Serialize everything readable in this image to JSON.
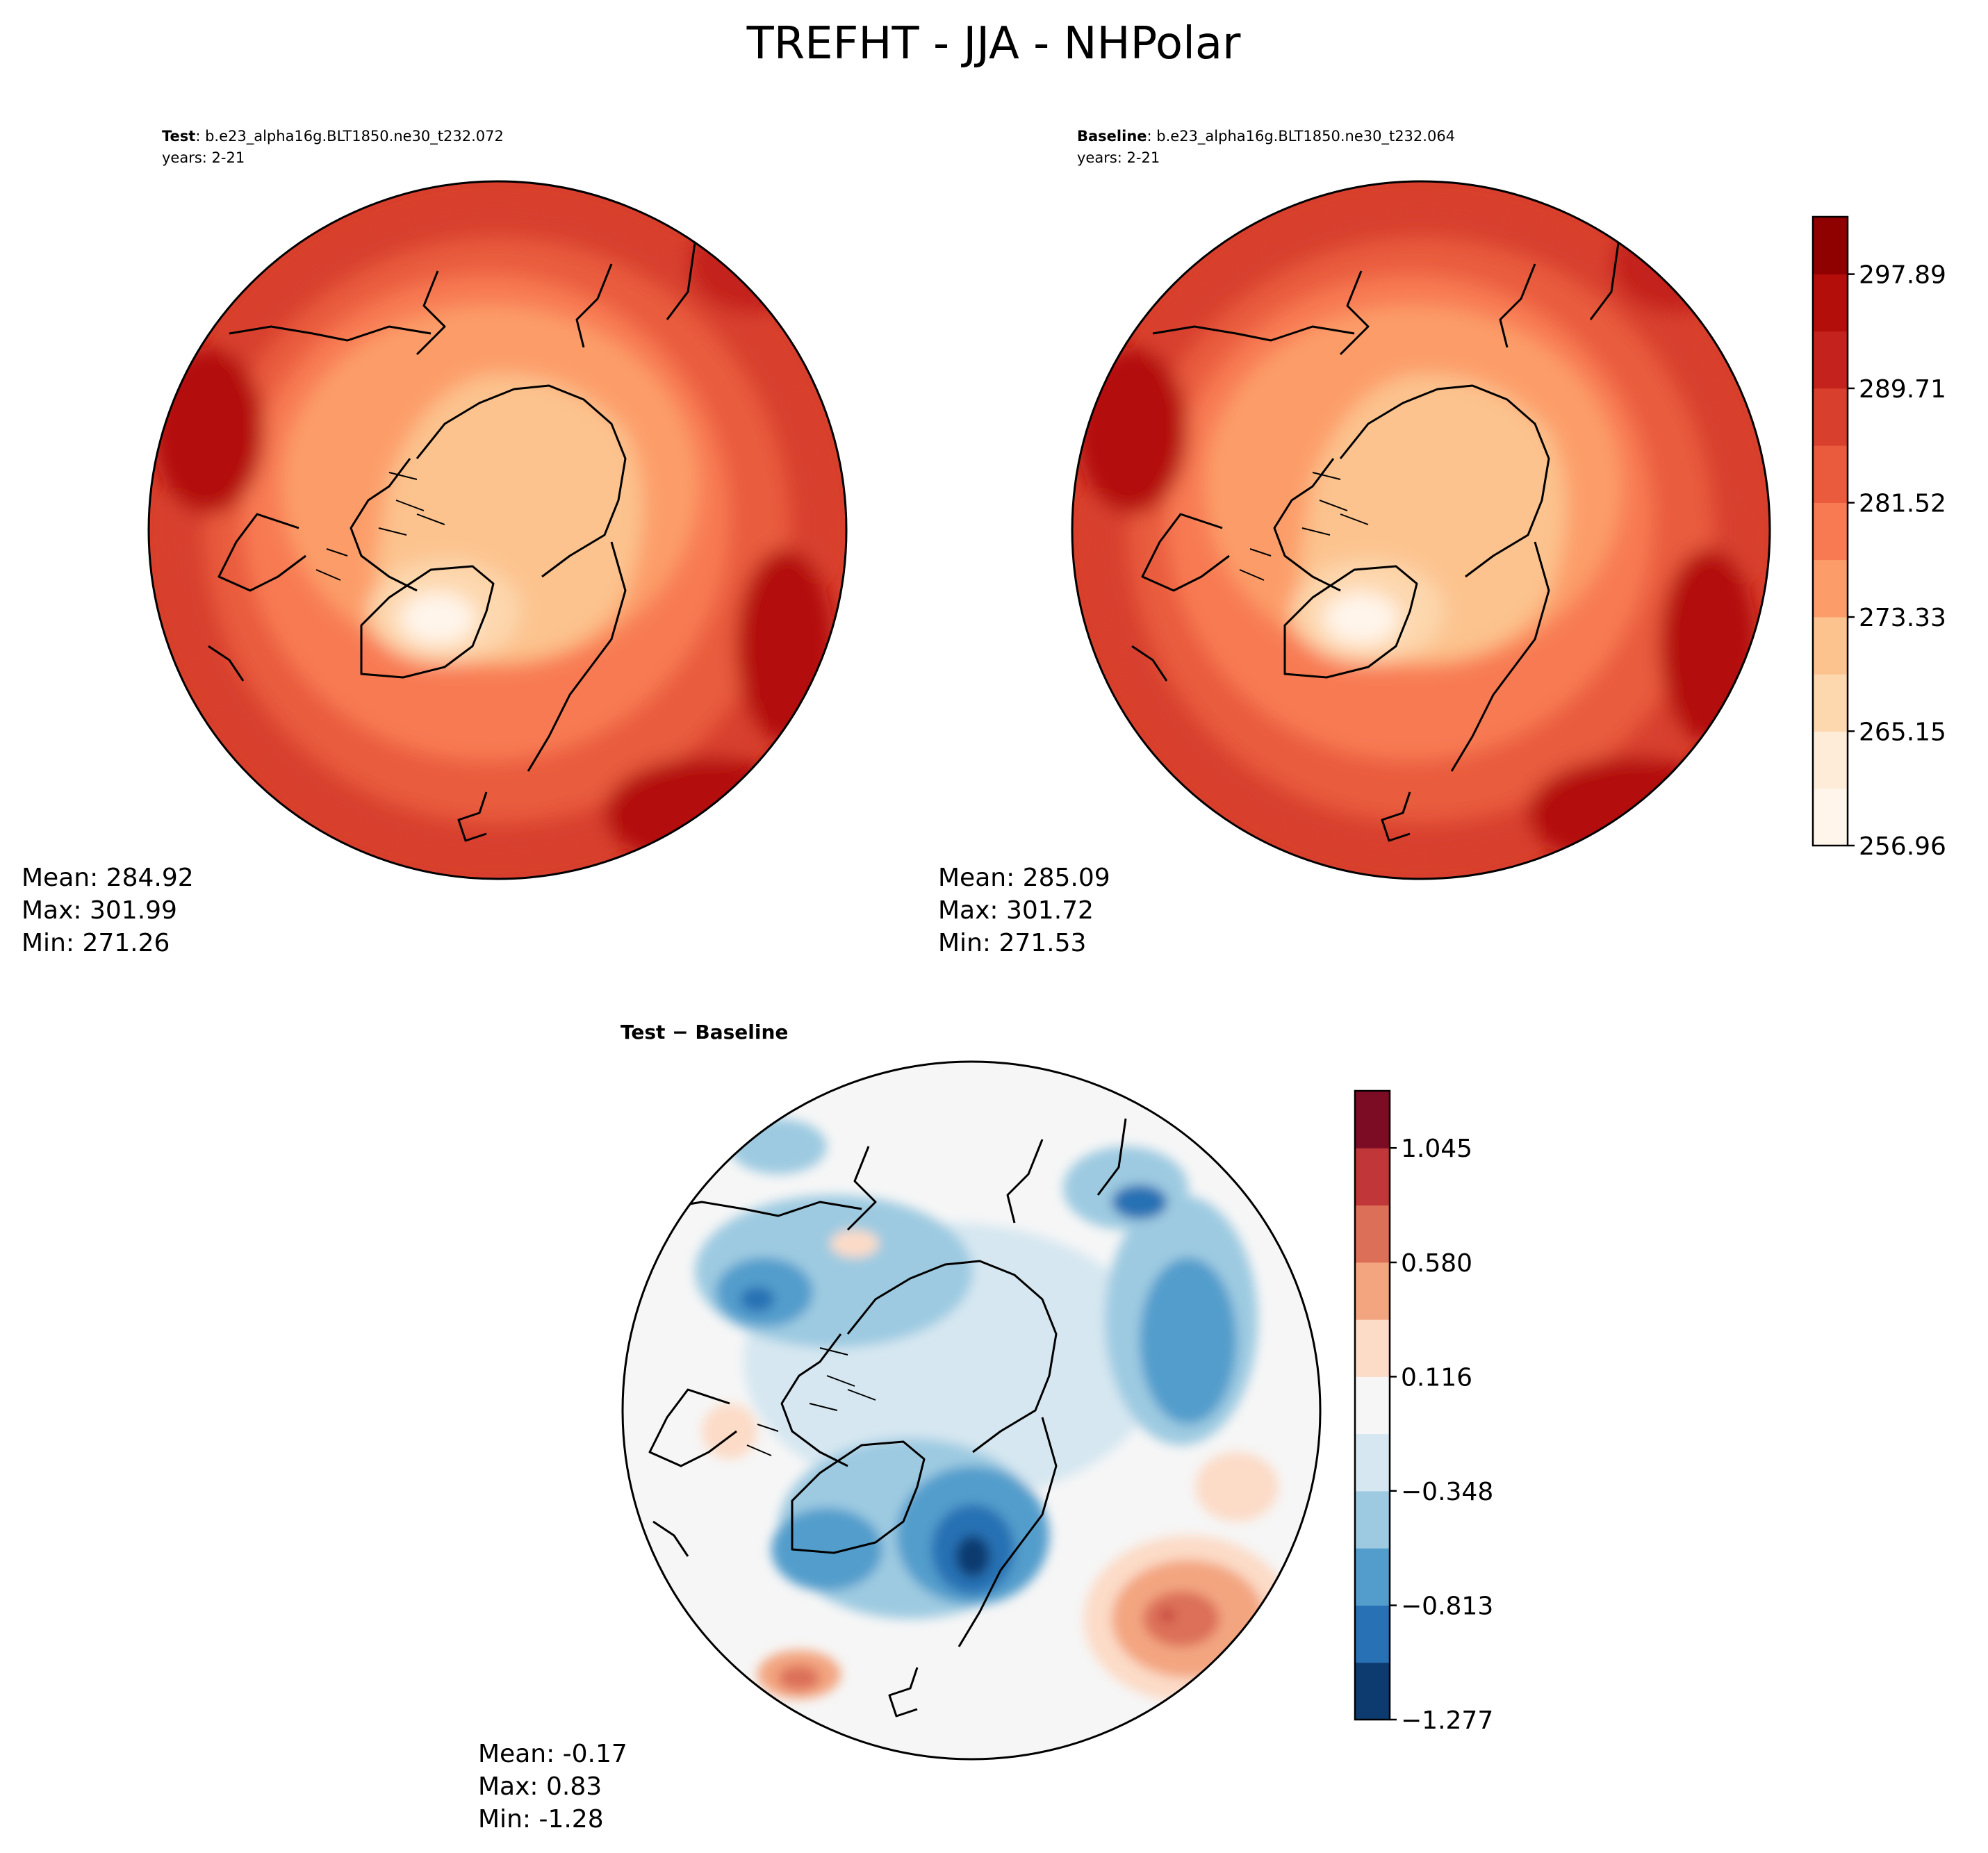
{
  "title": "TREFHT - JJA - NHPolar",
  "chart_data": [
    {
      "type": "heatmap",
      "projection": "north-polar-stereographic",
      "label_bold": "Test",
      "label_rest": ": b.e23_alpha16g.BLT1850.ne30_t232.072",
      "years": "years: 2-21",
      "stats": {
        "mean": "Mean: 284.92",
        "max": "Max: 301.99",
        "min": "Min: 271.26"
      }
    },
    {
      "type": "heatmap",
      "projection": "north-polar-stereographic",
      "label_bold": "Baseline",
      "label_rest": ": b.e23_alpha16g.BLT1850.ne30_t232.064",
      "years": "years: 2-21",
      "stats": {
        "mean": "Mean: 285.09",
        "max": "Max: 301.72",
        "min": "Min: 271.53"
      },
      "colorbar": {
        "range": [
          256.96,
          302.0
        ],
        "ticks": [
          "256.96",
          "265.15",
          "273.33",
          "281.52",
          "289.71",
          "297.89"
        ],
        "tick_values": [
          256.96,
          265.15,
          273.33,
          281.52,
          289.71,
          297.89
        ],
        "levels": 11,
        "colors": [
          "#fff5eb",
          "#feecd8",
          "#fdd7ad",
          "#fcc38e",
          "#fc9d69",
          "#f87a52",
          "#e95b3c",
          "#d8402d",
          "#c4221c",
          "#b30e0a",
          "#8f0000"
        ]
      }
    },
    {
      "type": "heatmap",
      "projection": "north-polar-stereographic",
      "label_bold": "Test − Baseline",
      "stats": {
        "mean": "Mean: -0.17",
        "max": "Max:  0.83",
        "min": "Min: -1.28"
      },
      "colorbar": {
        "range": [
          -1.277,
          1.277
        ],
        "ticks": [
          "−1.277",
          "−0.813",
          "−0.348",
          "0.116",
          "0.580",
          "1.045"
        ],
        "tick_values": [
          -1.277,
          -0.813,
          -0.348,
          0.116,
          0.58,
          1.045
        ],
        "levels": 11,
        "colors": [
          "#0d3b6f",
          "#2771b4",
          "#529dcc",
          "#9dcae1",
          "#d6e7f1",
          "#f6f6f6",
          "#fcdbc7",
          "#f3a580",
          "#dc6f58",
          "#c13639",
          "#7c0b24"
        ]
      }
    }
  ],
  "colors": {
    "ocean_land_warm": "#e95b3c",
    "ice": "#fcc38e",
    "coast": "#000000",
    "neutral": "#f6f6f6"
  }
}
